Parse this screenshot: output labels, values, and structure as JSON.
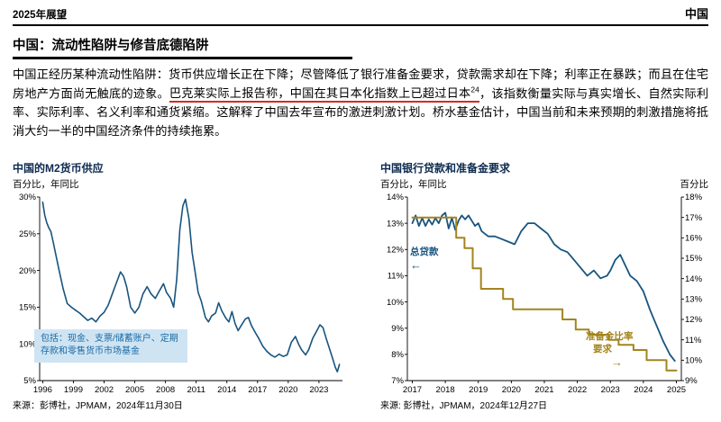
{
  "header": {
    "left": "2025年展望",
    "right": "中国"
  },
  "article": {
    "title": "中国：流动性陷阱与修昔底德陷阱",
    "p1": "中国正经历某种流动性陷阱：货币供应增长正在下降；尽管降低了银行准备金要求，贷款需求却在下降；利率正在暴跌；而且在住宅房地产方面尚无触底的迹象。",
    "highlight": "巴克莱实际上报告称，中国在其日本化指数上已超过日本",
    "sup": "24",
    "p2": "，该指数衡量实际与真实增长、自然实际利率、实际利率、名义利率和通货紧缩。这解释了中国去年宣布的激进刺激计划。桥水基金估计，中国当前和未来预期的刺激措施将抵消大约一半的中国经济条件的持续拖累。"
  },
  "chart_data": [
    {
      "type": "line",
      "title": "中国的M2货币供应",
      "subtitle_left": "百分比，年同比",
      "subtitle_right": "",
      "source": "来源：彭博社，JPMAM，2024年11月30日",
      "annotation": "包括：现金、支票/储蓄账户、定期存款和零售货币市场基金",
      "x_range": [
        1995.7,
        2025.3
      ],
      "x_ticks": [
        1996,
        1999,
        2002,
        2005,
        2008,
        2011,
        2014,
        2017,
        2020,
        2023
      ],
      "y_axis": {
        "min": 5,
        "max": 30,
        "step": 5,
        "suffix": "%"
      },
      "grid": false,
      "legend": "none",
      "series": [
        {
          "name": "M2货币供应同比",
          "axis": "left",
          "color": "#17547f",
          "width": 1.6,
          "points": [
            [
              1996.0,
              29.3
            ],
            [
              1996.2,
              27.5
            ],
            [
              1996.4,
              26.5
            ],
            [
              1996.6,
              25.8
            ],
            [
              1996.8,
              25.3
            ],
            [
              1997.0,
              24.0
            ],
            [
              1997.3,
              22.0
            ],
            [
              1997.6,
              20.0
            ],
            [
              1998.0,
              17.5
            ],
            [
              1998.4,
              15.5
            ],
            [
              1998.8,
              15.0
            ],
            [
              1999.2,
              14.6
            ],
            [
              1999.6,
              14.2
            ],
            [
              2000.0,
              13.7
            ],
            [
              2000.4,
              13.2
            ],
            [
              2000.8,
              13.5
            ],
            [
              2001.2,
              13.0
            ],
            [
              2001.6,
              13.8
            ],
            [
              2002.0,
              14.3
            ],
            [
              2002.4,
              15.3
            ],
            [
              2002.8,
              16.8
            ],
            [
              2003.2,
              18.3
            ],
            [
              2003.6,
              19.8
            ],
            [
              2003.9,
              19.2
            ],
            [
              2004.2,
              17.8
            ],
            [
              2004.6,
              15.0
            ],
            [
              2005.0,
              14.2
            ],
            [
              2005.4,
              15.0
            ],
            [
              2005.8,
              16.8
            ],
            [
              2006.2,
              17.8
            ],
            [
              2006.6,
              16.8
            ],
            [
              2007.0,
              16.2
            ],
            [
              2007.4,
              17.2
            ],
            [
              2007.8,
              18.2
            ],
            [
              2008.1,
              17.0
            ],
            [
              2008.5,
              16.2
            ],
            [
              2008.8,
              15.0
            ],
            [
              2009.1,
              18.8
            ],
            [
              2009.4,
              25.5
            ],
            [
              2009.7,
              28.8
            ],
            [
              2009.95,
              29.7
            ],
            [
              2010.3,
              27.0
            ],
            [
              2010.6,
              22.5
            ],
            [
              2010.9,
              19.8
            ],
            [
              2011.2,
              17.0
            ],
            [
              2011.5,
              15.8
            ],
            [
              2011.9,
              13.6
            ],
            [
              2012.2,
              13.0
            ],
            [
              2012.5,
              13.8
            ],
            [
              2012.9,
              14.2
            ],
            [
              2013.2,
              15.6
            ],
            [
              2013.5,
              14.5
            ],
            [
              2013.9,
              13.5
            ],
            [
              2014.2,
              13.0
            ],
            [
              2014.5,
              14.4
            ],
            [
              2014.8,
              12.8
            ],
            [
              2015.1,
              11.8
            ],
            [
              2015.4,
              12.5
            ],
            [
              2015.8,
              13.4
            ],
            [
              2016.1,
              13.6
            ],
            [
              2016.4,
              12.5
            ],
            [
              2016.8,
              11.5
            ],
            [
              2017.1,
              10.8
            ],
            [
              2017.5,
              9.7
            ],
            [
              2017.9,
              9.0
            ],
            [
              2018.3,
              8.5
            ],
            [
              2018.7,
              8.2
            ],
            [
              2019.1,
              8.6
            ],
            [
              2019.5,
              8.3
            ],
            [
              2019.9,
              8.5
            ],
            [
              2020.3,
              10.2
            ],
            [
              2020.7,
              11.0
            ],
            [
              2021.0,
              10.0
            ],
            [
              2021.3,
              9.2
            ],
            [
              2021.7,
              8.5
            ],
            [
              2022.0,
              9.2
            ],
            [
              2022.4,
              10.8
            ],
            [
              2022.8,
              11.8
            ],
            [
              2023.1,
              12.6
            ],
            [
              2023.4,
              12.2
            ],
            [
              2023.7,
              10.8
            ],
            [
              2024.0,
              9.5
            ],
            [
              2024.3,
              8.2
            ],
            [
              2024.6,
              6.8
            ],
            [
              2024.8,
              6.2
            ],
            [
              2025.0,
              7.2
            ]
          ]
        }
      ]
    },
    {
      "type": "line",
      "title": "中国银行贷款和准备金要求",
      "subtitle_left": "百分比，年同比",
      "subtitle_right": "百分比",
      "source": "来源: 彭博社，JPMAM，2024年12月27日",
      "labels": {
        "loans": "总贷款",
        "loans_arrow": "←",
        "rrr_line1": "准备金比率",
        "rrr_line2": "要求",
        "rrr_arrow": "→"
      },
      "x_range": [
        2016.85,
        2025.15
      ],
      "x_ticks": [
        2017,
        2018,
        2019,
        2020,
        2021,
        2022,
        2023,
        2024,
        2025
      ],
      "y_axis": {
        "min": 7,
        "max": 14,
        "step": 1,
        "suffix": "%"
      },
      "y2_axis": {
        "min": 9,
        "max": 18,
        "step": 1,
        "suffix": "%"
      },
      "grid": false,
      "legend": "in-plot-labels",
      "series": [
        {
          "name": "总贷款",
          "axis": "left",
          "color": "#17547f",
          "width": 1.8,
          "points": [
            [
              2017.0,
              13.0
            ],
            [
              2017.1,
              13.3
            ],
            [
              2017.2,
              12.9
            ],
            [
              2017.3,
              13.2
            ],
            [
              2017.4,
              12.9
            ],
            [
              2017.5,
              13.15
            ],
            [
              2017.6,
              12.95
            ],
            [
              2017.7,
              13.2
            ],
            [
              2017.8,
              13.0
            ],
            [
              2017.9,
              13.3
            ],
            [
              2018.0,
              13.4
            ],
            [
              2018.1,
              12.8
            ],
            [
              2018.2,
              13.2
            ],
            [
              2018.3,
              12.75
            ],
            [
              2018.4,
              13.1
            ],
            [
              2018.5,
              13.3
            ],
            [
              2018.6,
              13.15
            ],
            [
              2018.7,
              13.3
            ],
            [
              2018.8,
              13.1
            ],
            [
              2018.9,
              12.9
            ],
            [
              2019.0,
              13.0
            ],
            [
              2019.1,
              12.7
            ],
            [
              2019.3,
              12.5
            ],
            [
              2019.5,
              12.5
            ],
            [
              2019.7,
              12.4
            ],
            [
              2019.9,
              12.3
            ],
            [
              2020.1,
              12.2
            ],
            [
              2020.3,
              12.7
            ],
            [
              2020.5,
              13.0
            ],
            [
              2020.7,
              13.0
            ],
            [
              2020.9,
              12.8
            ],
            [
              2021.1,
              12.6
            ],
            [
              2021.3,
              12.2
            ],
            [
              2021.5,
              12.0
            ],
            [
              2021.7,
              11.9
            ],
            [
              2021.9,
              11.6
            ],
            [
              2022.1,
              11.3
            ],
            [
              2022.3,
              11.0
            ],
            [
              2022.5,
              11.2
            ],
            [
              2022.7,
              10.9
            ],
            [
              2022.9,
              11.0
            ],
            [
              2023.0,
              11.2
            ],
            [
              2023.15,
              11.6
            ],
            [
              2023.3,
              11.8
            ],
            [
              2023.45,
              11.4
            ],
            [
              2023.6,
              11.0
            ],
            [
              2023.8,
              10.8
            ],
            [
              2024.0,
              10.4
            ],
            [
              2024.2,
              9.7
            ],
            [
              2024.4,
              9.1
            ],
            [
              2024.6,
              8.5
            ],
            [
              2024.8,
              8.0
            ],
            [
              2024.95,
              7.75
            ]
          ]
        },
        {
          "name": "准备金比率要求",
          "axis": "right",
          "color": "#a3841f",
          "width": 2,
          "points": [
            [
              2017.0,
              17
            ],
            [
              2018.33,
              17
            ],
            [
              2018.33,
              16
            ],
            [
              2018.58,
              16
            ],
            [
              2018.58,
              15.5
            ],
            [
              2018.83,
              15.5
            ],
            [
              2018.83,
              14.5
            ],
            [
              2019.08,
              14.5
            ],
            [
              2019.08,
              13.5
            ],
            [
              2019.75,
              13.5
            ],
            [
              2019.75,
              13.0
            ],
            [
              2020.05,
              13.0
            ],
            [
              2020.05,
              12.5
            ],
            [
              2021.55,
              12.5
            ],
            [
              2021.55,
              12.0
            ],
            [
              2021.95,
              12.0
            ],
            [
              2021.95,
              11.5
            ],
            [
              2022.35,
              11.5
            ],
            [
              2022.35,
              11.25
            ],
            [
              2022.95,
              11.25
            ],
            [
              2022.95,
              11.0
            ],
            [
              2023.25,
              11.0
            ],
            [
              2023.25,
              10.75
            ],
            [
              2023.7,
              10.75
            ],
            [
              2023.7,
              10.5
            ],
            [
              2024.1,
              10.5
            ],
            [
              2024.1,
              10.0
            ],
            [
              2024.7,
              10.0
            ],
            [
              2024.7,
              9.5
            ],
            [
              2025.0,
              9.5
            ]
          ]
        }
      ]
    }
  ]
}
